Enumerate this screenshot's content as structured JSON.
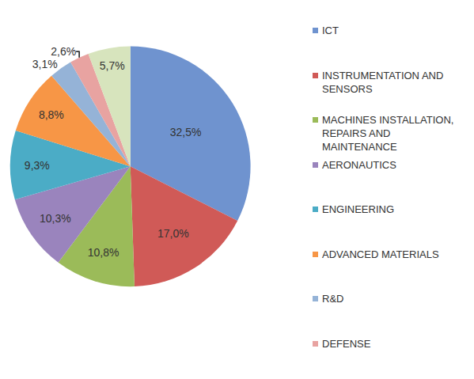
{
  "chart_data": {
    "type": "pie",
    "categories": [
      "ICT",
      "INSTRUMENTATION AND SENSORS",
      "MACHINES INSTALLATION, REPAIRS AND MAINTENANCE",
      "AERONAUTICS",
      "ENGINEERING",
      "ADVANCED MATERIALS",
      "R&D",
      "DEFENSE",
      null
    ],
    "values": [
      32.5,
      17.0,
      10.8,
      10.3,
      9.3,
      8.8,
      3.1,
      2.6,
      5.7
    ],
    "value_labels": [
      "32,5%",
      "17,0%",
      "10,8%",
      "10,3%",
      "9,3%",
      "8,8%",
      "3,1%",
      "2,6%",
      "5,7%"
    ],
    "colors": [
      "#6f93cf",
      "#d05a57",
      "#9bbb59",
      "#9a84bd",
      "#4bacc6",
      "#f79646",
      "#95b3d7",
      "#e8a3a1",
      "#d7e4bd"
    ],
    "data_labels": true,
    "legend": "right"
  }
}
